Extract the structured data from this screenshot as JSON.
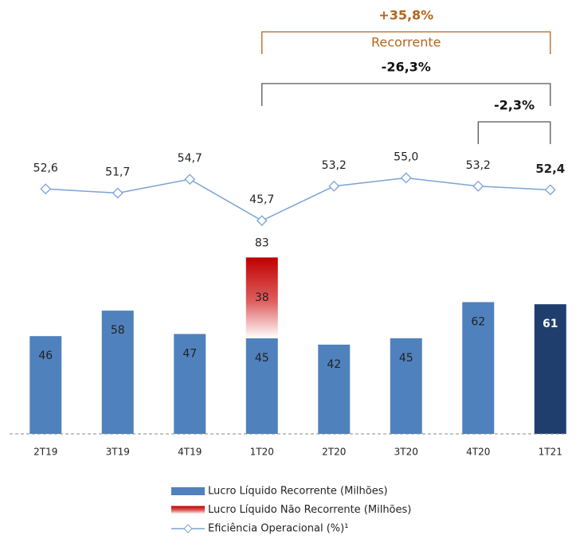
{
  "chart_data": {
    "type": "bar",
    "categories": [
      "2T19",
      "3T19",
      "4T19",
      "1T20",
      "2T20",
      "3T20",
      "4T20",
      "1T21"
    ],
    "highlight_category": "1T21",
    "series": [
      {
        "name": "Lucro Líquido Recorrente  (Milhões)",
        "color": "#4f81bd",
        "highlight_color": "#1f3e6e",
        "values": [
          46,
          58,
          47,
          45,
          42,
          45,
          62,
          61
        ]
      },
      {
        "name": "Lucro Líquido Não Recorrente (Milhões)",
        "color": "#c00000",
        "stacked": true,
        "values": [
          null,
          null,
          null,
          38,
          null,
          null,
          null,
          null
        ]
      },
      {
        "name": "Eficiência Operacional (%)¹",
        "type": "line",
        "axis": "y2",
        "color": "#7aa3d4",
        "values": [
          52.6,
          51.7,
          54.7,
          45.7,
          53.2,
          55.0,
          53.2,
          52.4
        ],
        "value_labels": [
          "52,6",
          "51,7",
          "54,7",
          "45,7",
          "53,2",
          "55,0",
          "53,2",
          "52,4"
        ]
      }
    ],
    "total_labels": [
      null,
      null,
      null,
      "83",
      null,
      null,
      null,
      null
    ],
    "ylim": [
      0,
      100
    ],
    "y2lim": [
      40,
      66
    ],
    "brackets": [
      {
        "text": "+35,8%",
        "subtitle": "Recorrente",
        "from": "1T20",
        "to": "1T21",
        "color": "#b5651d"
      },
      {
        "text": "-26,3%",
        "from": "1T20",
        "to": "1T21",
        "color": "#555555"
      },
      {
        "text": "-2,3%",
        "from": "4T20",
        "to": "1T21",
        "color": "#555555"
      }
    ]
  }
}
